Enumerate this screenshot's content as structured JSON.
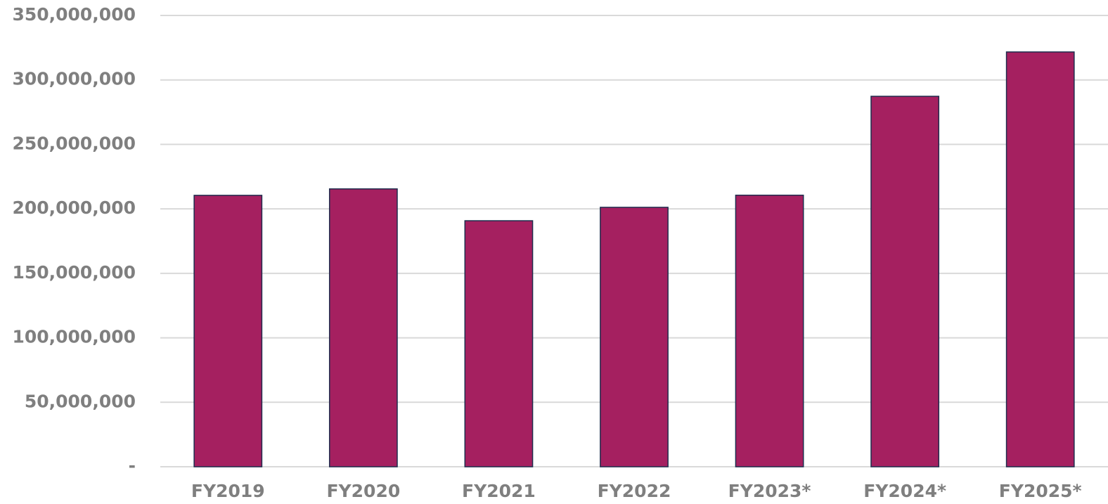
{
  "chart_data": {
    "type": "bar",
    "categories": [
      "FY2019",
      "FY2020",
      "FY2021",
      "FY2022",
      "FY2023*",
      "FY2024*",
      "FY2025*"
    ],
    "values": [
      210500000,
      215500000,
      190800000,
      201200000,
      210600000,
      287300000,
      321700000
    ],
    "color": "#a52060",
    "ylim": [
      0,
      350000000
    ],
    "yticks": [
      {
        "value": 0,
        "label": "-"
      },
      {
        "value": 50000000,
        "label": "50,000,000"
      },
      {
        "value": 100000000,
        "label": "100,000,000"
      },
      {
        "value": 150000000,
        "label": "150,000,000"
      },
      {
        "value": 200000000,
        "label": "200,000,000"
      },
      {
        "value": 250000000,
        "label": "250,000,000"
      },
      {
        "value": 300000000,
        "label": "300,000,000"
      },
      {
        "value": 350000000,
        "label": "350,000,000"
      }
    ],
    "grid": true
  }
}
